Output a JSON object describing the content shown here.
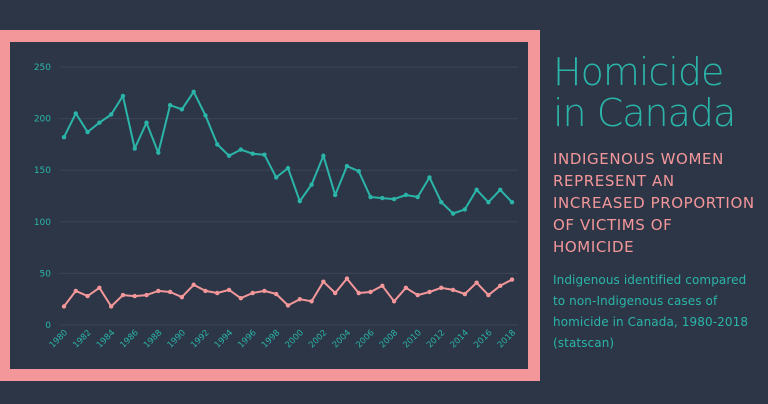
{
  "header": {
    "title_line1": "Homicide",
    "title_line2": "in Canada",
    "subtitle": "INDIGENOUS WOMEN REPRESENT AN INCREASED PROPORTION OF VICTIMS OF HOMICIDE",
    "description": "Indigenous identified compared to non-Indigenous cases of homicide in Canada, 1980-2018 (statscan)"
  },
  "colors": {
    "background": "#2c3647",
    "frame": "#f4979a",
    "teal": "#2bb5a8",
    "pink": "#f4979a",
    "grid": "#3a4658",
    "tick": "#2bb5a8"
  },
  "chart_data": {
    "type": "line",
    "x": [
      1980,
      1981,
      1982,
      1983,
      1984,
      1985,
      1986,
      1987,
      1988,
      1989,
      1990,
      1991,
      1992,
      1993,
      1994,
      1995,
      1996,
      1997,
      1998,
      1999,
      2000,
      2001,
      2002,
      2003,
      2004,
      2005,
      2006,
      2007,
      2008,
      2009,
      2010,
      2011,
      2012,
      2013,
      2014,
      2015,
      2016,
      2017,
      2018
    ],
    "x_tick_labels": [
      "1980",
      "1982",
      "1984",
      "1986",
      "1988",
      "1990",
      "1992",
      "1994",
      "1996",
      "1998",
      "2000",
      "2002",
      "2004",
      "2006",
      "2008",
      "2010",
      "2012",
      "2014",
      "2016",
      "2018"
    ],
    "ylim": [
      0,
      250
    ],
    "y_ticks": [
      0,
      50,
      100,
      150,
      200,
      250
    ],
    "grid": true,
    "series": [
      {
        "color": "#2bb5a8",
        "values": [
          182,
          205,
          187,
          196,
          204,
          222,
          171,
          196,
          167,
          213,
          209,
          226,
          203,
          175,
          164,
          170,
          166,
          165,
          143,
          152,
          120,
          136,
          164,
          126,
          154,
          149,
          124,
          123,
          122,
          126,
          124,
          143,
          119,
          108,
          112,
          131,
          119,
          131,
          119
        ]
      },
      {
        "color": "#f4979a",
        "values": [
          18,
          33,
          28,
          36,
          18,
          29,
          28,
          29,
          33,
          32,
          27,
          39,
          33,
          31,
          34,
          26,
          31,
          33,
          30,
          19,
          25,
          23,
          42,
          31,
          45,
          31,
          32,
          38,
          23,
          36,
          29,
          32,
          36,
          34,
          30,
          41,
          29,
          38,
          44
        ]
      }
    ]
  }
}
